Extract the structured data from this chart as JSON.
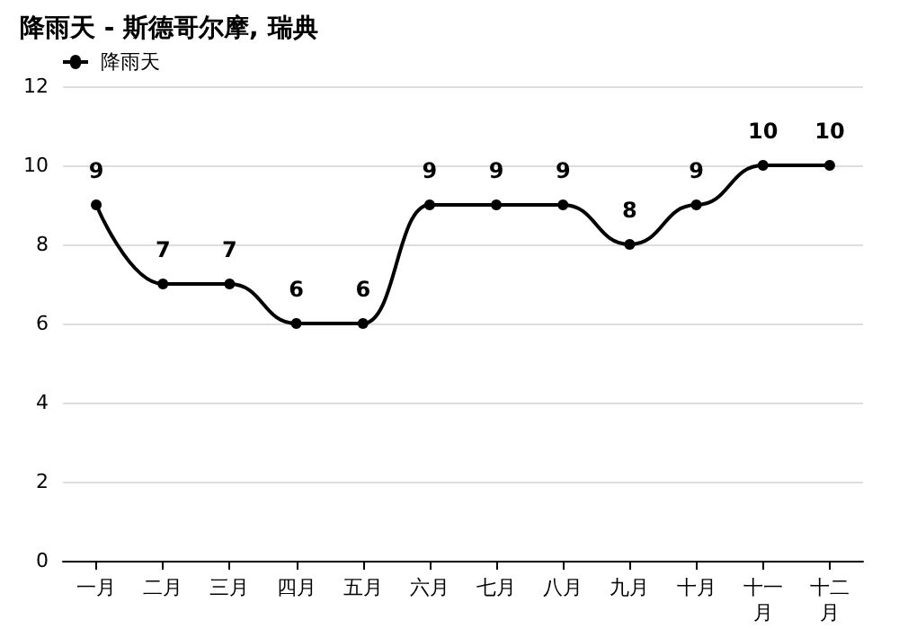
{
  "chart_data": {
    "type": "line",
    "title": "降雨天 - 斯德哥尔摩, 瑞典",
    "categories": [
      "一月",
      "二月",
      "三月",
      "四月",
      "五月",
      "六月",
      "七月",
      "八月",
      "九月",
      "十月",
      "十一月",
      "十二月"
    ],
    "series": [
      {
        "name": "降雨天",
        "color": "#000000",
        "values": [
          9,
          7,
          7,
          6,
          6,
          9,
          9,
          9,
          8,
          9,
          10,
          10
        ]
      }
    ],
    "ylim": [
      0,
      12
    ],
    "yticks": [
      0,
      2,
      4,
      6,
      8,
      10,
      12
    ],
    "grid": "y",
    "legend": "top left",
    "marker": "circle",
    "line_style": "solid",
    "data_labels": true
  }
}
